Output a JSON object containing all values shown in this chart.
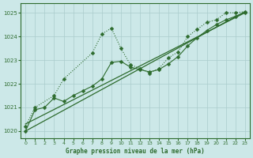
{
  "title": "Graphe pression niveau de la mer (hPa)",
  "bg_color": "#cce8e8",
  "grid_color": "#aacccc",
  "line_color": "#2d6b2d",
  "xlim": [
    -0.5,
    23.5
  ],
  "ylim": [
    1019.7,
    1025.4
  ],
  "yticks": [
    1020,
    1021,
    1022,
    1023,
    1024,
    1025
  ],
  "xticks": [
    0,
    1,
    2,
    3,
    4,
    5,
    6,
    7,
    8,
    9,
    10,
    11,
    12,
    13,
    14,
    15,
    16,
    17,
    18,
    19,
    20,
    21,
    22,
    23
  ],
  "series1_x": [
    0,
    1,
    3,
    4,
    7,
    8,
    9,
    10,
    11,
    12,
    13,
    14,
    15,
    16,
    17,
    18,
    19,
    20,
    21,
    22,
    23
  ],
  "series1_y": [
    1020.2,
    1021.0,
    1021.5,
    1022.2,
    1023.3,
    1024.1,
    1024.35,
    1023.5,
    1022.8,
    1022.65,
    1022.45,
    1022.65,
    1023.1,
    1023.35,
    1024.0,
    1024.3,
    1024.6,
    1024.7,
    1025.0,
    1025.0,
    1025.05
  ],
  "series2_x": [
    0,
    1,
    2,
    3,
    4,
    5,
    6,
    7,
    8,
    9,
    10,
    11,
    12,
    13,
    14,
    15,
    16,
    17,
    18,
    19,
    20,
    21,
    22,
    23
  ],
  "series2_y": [
    1020.0,
    1020.9,
    1021.0,
    1021.4,
    1021.25,
    1021.5,
    1021.7,
    1021.9,
    1022.2,
    1022.9,
    1022.95,
    1022.7,
    1022.6,
    1022.5,
    1022.6,
    1022.85,
    1023.15,
    1023.6,
    1023.95,
    1024.25,
    1024.5,
    1024.7,
    1024.85,
    1025.0
  ],
  "trend1_x": [
    0,
    23
  ],
  "trend1_y": [
    1020.0,
    1025.05
  ],
  "trend2_x": [
    0,
    23
  ],
  "trend2_y": [
    1020.3,
    1025.0
  ]
}
